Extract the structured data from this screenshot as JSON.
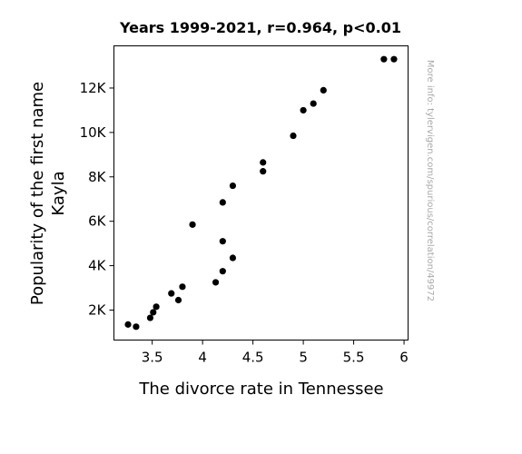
{
  "chart_data": {
    "type": "scatter",
    "title": "Years 1999-2021, r=0.964, p<0.01",
    "xlabel": "The divorce rate in Tennessee",
    "ylabel_lines": [
      "Popularity of the first name",
      "Kayla"
    ],
    "xlim": [
      3.12,
      6.04
    ],
    "ylim": [
      650,
      13900
    ],
    "xticks": [
      {
        "value": 3.5,
        "label": "3.5"
      },
      {
        "value": 4.0,
        "label": "4"
      },
      {
        "value": 4.5,
        "label": "4.5"
      },
      {
        "value": 5.0,
        "label": "5"
      },
      {
        "value": 5.5,
        "label": "5.5"
      },
      {
        "value": 6.0,
        "label": "6"
      }
    ],
    "yticks": [
      {
        "value": 2000,
        "label": "2K"
      },
      {
        "value": 4000,
        "label": "4K"
      },
      {
        "value": 6000,
        "label": "6K"
      },
      {
        "value": 8000,
        "label": "8K"
      },
      {
        "value": 10000,
        "label": "10K"
      },
      {
        "value": 12000,
        "label": "12K"
      }
    ],
    "points": [
      {
        "x": 5.8,
        "y": 13300
      },
      {
        "x": 5.9,
        "y": 13300
      },
      {
        "x": 5.2,
        "y": 11900
      },
      {
        "x": 5.1,
        "y": 11300
      },
      {
        "x": 5.0,
        "y": 11000
      },
      {
        "x": 4.9,
        "y": 9850
      },
      {
        "x": 4.6,
        "y": 8650
      },
      {
        "x": 4.6,
        "y": 8250
      },
      {
        "x": 4.3,
        "y": 7600
      },
      {
        "x": 4.2,
        "y": 6850
      },
      {
        "x": 3.9,
        "y": 5850
      },
      {
        "x": 4.2,
        "y": 5100
      },
      {
        "x": 4.3,
        "y": 4350
      },
      {
        "x": 4.2,
        "y": 3750
      },
      {
        "x": 4.13,
        "y": 3250
      },
      {
        "x": 3.8,
        "y": 3050
      },
      {
        "x": 3.69,
        "y": 2750
      },
      {
        "x": 3.76,
        "y": 2450
      },
      {
        "x": 3.54,
        "y": 2150
      },
      {
        "x": 3.51,
        "y": 1900
      },
      {
        "x": 3.48,
        "y": 1650
      },
      {
        "x": 3.26,
        "y": 1350
      },
      {
        "x": 3.34,
        "y": 1250
      }
    ],
    "marker_color": "#000000",
    "grid": false,
    "legend": "none"
  },
  "watermark": "More info: tylervigen.com/spurious/correlation/49972"
}
